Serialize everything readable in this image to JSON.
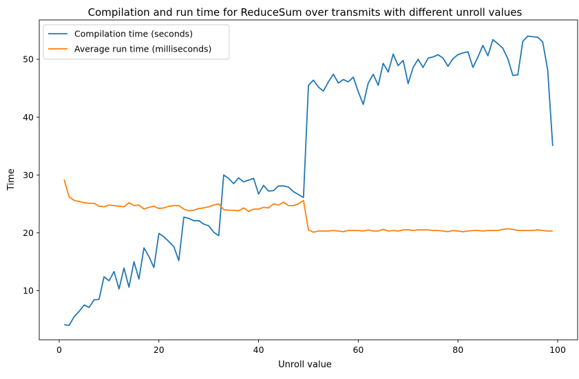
{
  "chart_data": {
    "type": "line",
    "title": "Compilation and run time for ReduceSum over transmits with different unroll values",
    "xlabel": "Unroll value",
    "ylabel": "Time",
    "xlim": [
      -4.0,
      104.0
    ],
    "ylim": [
      1.5,
      56.8
    ],
    "xticks": [
      0,
      20,
      40,
      60,
      80,
      100
    ],
    "yticks": [
      10,
      20,
      30,
      40,
      50
    ],
    "grid": false,
    "legend_position": "top-left",
    "x": [
      1,
      2,
      3,
      4,
      5,
      6,
      7,
      8,
      9,
      10,
      11,
      12,
      13,
      14,
      15,
      16,
      17,
      18,
      19,
      20,
      21,
      22,
      23,
      24,
      25,
      26,
      27,
      28,
      29,
      30,
      31,
      32,
      33,
      34,
      35,
      36,
      37,
      38,
      39,
      40,
      41,
      42,
      43,
      44,
      45,
      46,
      47,
      48,
      49,
      50,
      51,
      52,
      53,
      54,
      55,
      56,
      57,
      58,
      59,
      60,
      61,
      62,
      63,
      64,
      65,
      66,
      67,
      68,
      69,
      70,
      71,
      72,
      73,
      74,
      75,
      76,
      77,
      78,
      79,
      80,
      81,
      82,
      83,
      84,
      85,
      86,
      87,
      88,
      89,
      90,
      91,
      92,
      93,
      94,
      95,
      96,
      97,
      98,
      99
    ],
    "series": [
      {
        "name": "Compilation time (seconds)",
        "color": "#1f77b4",
        "values": [
          4.1,
          4.0,
          5.5,
          6.4,
          7.5,
          7.1,
          8.4,
          8.5,
          12.4,
          11.7,
          13.3,
          10.3,
          13.9,
          10.6,
          15.0,
          12.0,
          17.4,
          15.9,
          14.0,
          19.9,
          19.3,
          18.5,
          17.6,
          15.2,
          22.7,
          22.5,
          22.1,
          22.1,
          21.5,
          21.2,
          20.1,
          19.5,
          30.0,
          29.4,
          28.5,
          29.5,
          28.8,
          29.1,
          29.4,
          26.7,
          28.2,
          27.2,
          27.3,
          28.1,
          28.1,
          27.9,
          27.1,
          26.6,
          26.1,
          45.5,
          46.4,
          45.2,
          44.5,
          46.1,
          47.4,
          45.9,
          46.5,
          46.1,
          46.9,
          44.4,
          42.2,
          45.9,
          47.4,
          45.5,
          49.3,
          47.8,
          50.9,
          48.9,
          49.8,
          45.8,
          48.6,
          50.0,
          48.6,
          50.2,
          50.4,
          50.8,
          50.2,
          48.8,
          50.1,
          50.8,
          51.1,
          51.3,
          48.6,
          50.4,
          52.4,
          50.6,
          53.4,
          52.7,
          51.9,
          50.1,
          47.2,
          47.3,
          53.1,
          54.0,
          53.9,
          53.8,
          53.0,
          48.1,
          35.0
        ]
      },
      {
        "name": "Average run time (milliseconds)",
        "color": "#ff7f0e",
        "values": [
          29.2,
          26.2,
          25.6,
          25.4,
          25.2,
          25.1,
          25.1,
          24.6,
          24.5,
          24.8,
          24.7,
          24.6,
          24.5,
          25.2,
          24.7,
          24.8,
          24.1,
          24.4,
          24.6,
          24.2,
          24.3,
          24.6,
          24.7,
          24.7,
          24.1,
          23.8,
          23.9,
          24.2,
          24.3,
          24.5,
          24.8,
          25.0,
          24.0,
          23.9,
          23.9,
          23.8,
          24.3,
          23.7,
          24.1,
          24.1,
          24.4,
          24.3,
          25.0,
          24.8,
          25.3,
          24.7,
          24.7,
          25.0,
          25.6,
          20.5,
          20.1,
          20.3,
          20.3,
          20.3,
          20.4,
          20.3,
          20.2,
          20.4,
          20.4,
          20.4,
          20.3,
          20.5,
          20.3,
          20.3,
          20.6,
          20.3,
          20.4,
          20.3,
          20.5,
          20.5,
          20.4,
          20.5,
          20.5,
          20.5,
          20.4,
          20.4,
          20.3,
          20.2,
          20.4,
          20.3,
          20.2,
          20.3,
          20.4,
          20.4,
          20.3,
          20.4,
          20.4,
          20.4,
          20.6,
          20.7,
          20.6,
          20.4,
          20.4,
          20.4,
          20.4,
          20.5,
          20.4,
          20.3,
          20.3
        ]
      }
    ]
  }
}
